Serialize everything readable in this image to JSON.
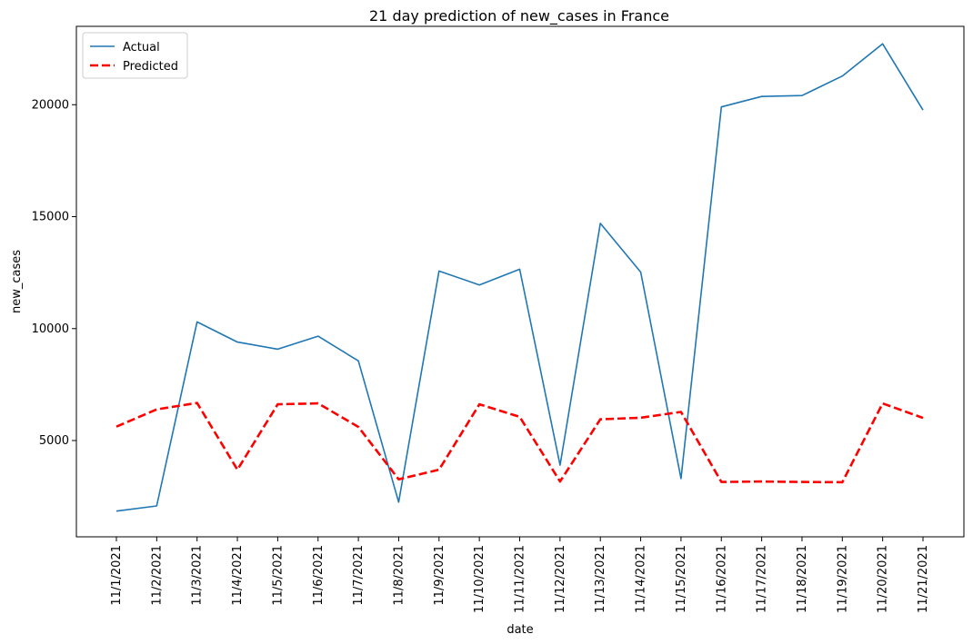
{
  "chart_data": {
    "type": "line",
    "title": "21 day prediction of new_cases in France",
    "xlabel": "date",
    "ylabel": "new_cases",
    "x": [
      "11/1/2021",
      "11/2/2021",
      "11/3/2021",
      "11/4/2021",
      "11/5/2021",
      "11/6/2021",
      "11/7/2021",
      "11/8/2021",
      "11/9/2021",
      "11/10/2021",
      "11/11/2021",
      "11/12/2021",
      "11/13/2021",
      "11/14/2021",
      "11/15/2021",
      "11/16/2021",
      "11/17/2021",
      "11/18/2021",
      "11/19/2021",
      "11/20/2021",
      "11/21/2021"
    ],
    "yticks": [
      5000,
      10000,
      15000,
      20000
    ],
    "ylim": [
      700,
      23500
    ],
    "grid": false,
    "legend_position": "top-left",
    "series": [
      {
        "name": "Actual",
        "color": "#1f77b4",
        "style": "solid",
        "values": [
          1850,
          2080,
          10300,
          9400,
          9080,
          9660,
          8560,
          2250,
          12570,
          11950,
          12650,
          3900,
          14700,
          12520,
          3300,
          19900,
          20370,
          20410,
          21280,
          22720,
          19760
        ]
      },
      {
        "name": "Predicted",
        "color": "#ff0000",
        "style": "dashed",
        "values": [
          5620,
          6390,
          6680,
          3700,
          6620,
          6660,
          5610,
          3270,
          3700,
          6620,
          6060,
          3170,
          5950,
          6020,
          6280,
          3150,
          3170,
          3150,
          3140,
          6660,
          6010
        ]
      }
    ]
  }
}
